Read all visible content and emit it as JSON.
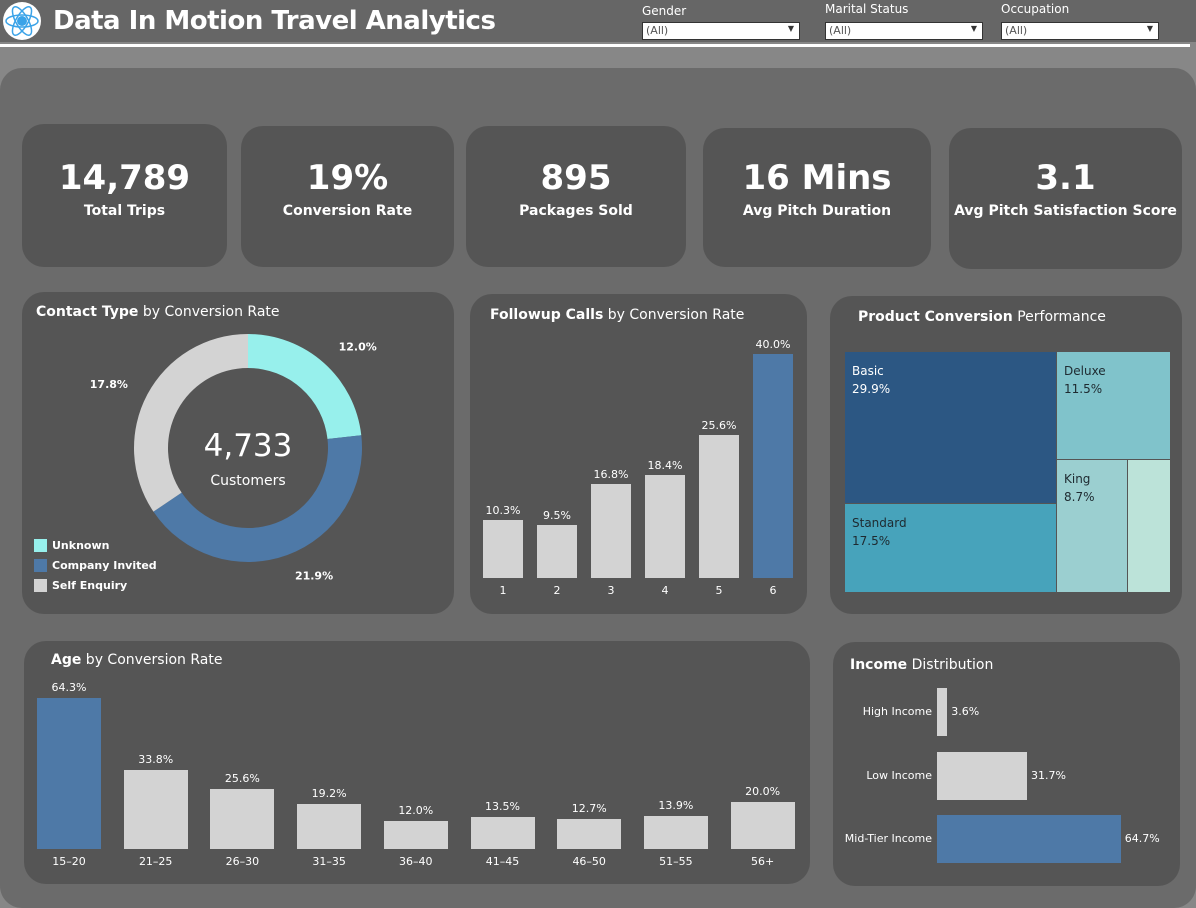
{
  "header": {
    "title": "Data In Motion Travel Analytics",
    "logo": "atom-chart-logo",
    "filters": [
      {
        "label": "Gender",
        "value": "(All)"
      },
      {
        "label": "Marital Status",
        "value": "(All)"
      },
      {
        "label": "Occupation",
        "value": "(All)"
      }
    ]
  },
  "kpis": [
    {
      "value": "14,789",
      "label": "Total Trips"
    },
    {
      "value": "19%",
      "label": "Conversion Rate"
    },
    {
      "value": "895",
      "label": "Packages Sold"
    },
    {
      "value": "16 Mins",
      "label": "Avg Pitch Duration"
    },
    {
      "value": "3.1",
      "label": "Avg Pitch Satisfaction Score"
    }
  ],
  "contact": {
    "title_bold": "Contact Type",
    "title_rest": " by Conversion Rate",
    "center_value": "4,733",
    "center_label": "Customers",
    "slices": [
      {
        "name": "Unknown",
        "value": 12.0,
        "label": "12.0%",
        "color": "#97f0ec"
      },
      {
        "name": "Company Invited",
        "value": 21.9,
        "label": "21.9%",
        "color": "#4e79a7"
      },
      {
        "name": "Self Enquiry",
        "value": 17.8,
        "label": "17.8%",
        "color": "#d3d3d3"
      }
    ]
  },
  "followup": {
    "title_bold": "Followup Calls",
    "title_rest": " by Conversion Rate",
    "categories": [
      "1",
      "2",
      "3",
      "4",
      "5",
      "6"
    ],
    "values": [
      10.3,
      9.5,
      16.8,
      18.4,
      25.6,
      40.0
    ],
    "labels": [
      "10.3%",
      "9.5%",
      "16.8%",
      "18.4%",
      "25.6%",
      "40.0%"
    ]
  },
  "product": {
    "title_bold": "Product Conversion",
    "title_rest": " Performance",
    "cells": [
      {
        "name": "Basic",
        "label": "29.9%",
        "color": "#2c5783"
      },
      {
        "name": "Standard",
        "label": "17.5%",
        "color": "#47a3bb"
      },
      {
        "name": "Deluxe",
        "label": "11.5%",
        "color": "#80c3cb"
      },
      {
        "name": "King",
        "label": "8.7%",
        "color": "#9bcfd0"
      }
    ],
    "unlabeled_color": "#bce3d9"
  },
  "age": {
    "title_bold": "Age",
    "title_rest": " by Conversion Rate",
    "categories": [
      "15–20",
      "21–25",
      "26–30",
      "31–35",
      "36–40",
      "41–45",
      "46–50",
      "51–55",
      "56+"
    ],
    "values": [
      64.3,
      33.8,
      25.6,
      19.2,
      12.0,
      13.5,
      12.7,
      13.9,
      20.0
    ],
    "labels": [
      "64.3%",
      "33.8%",
      "25.6%",
      "19.2%",
      "12.0%",
      "13.5%",
      "12.7%",
      "13.9%",
      "20.0%"
    ]
  },
  "income": {
    "title_bold": "Income",
    "title_rest": " Distribution",
    "categories": [
      "High Income",
      "Low Income",
      "Mid-Tier Income"
    ],
    "values": [
      3.6,
      31.7,
      64.7
    ],
    "labels": [
      "3.6%",
      "31.7%",
      "64.7%"
    ]
  },
  "colors": {
    "highlight": "#4e79a7",
    "bar": "#d3d3d3",
    "card": "#555555"
  }
}
